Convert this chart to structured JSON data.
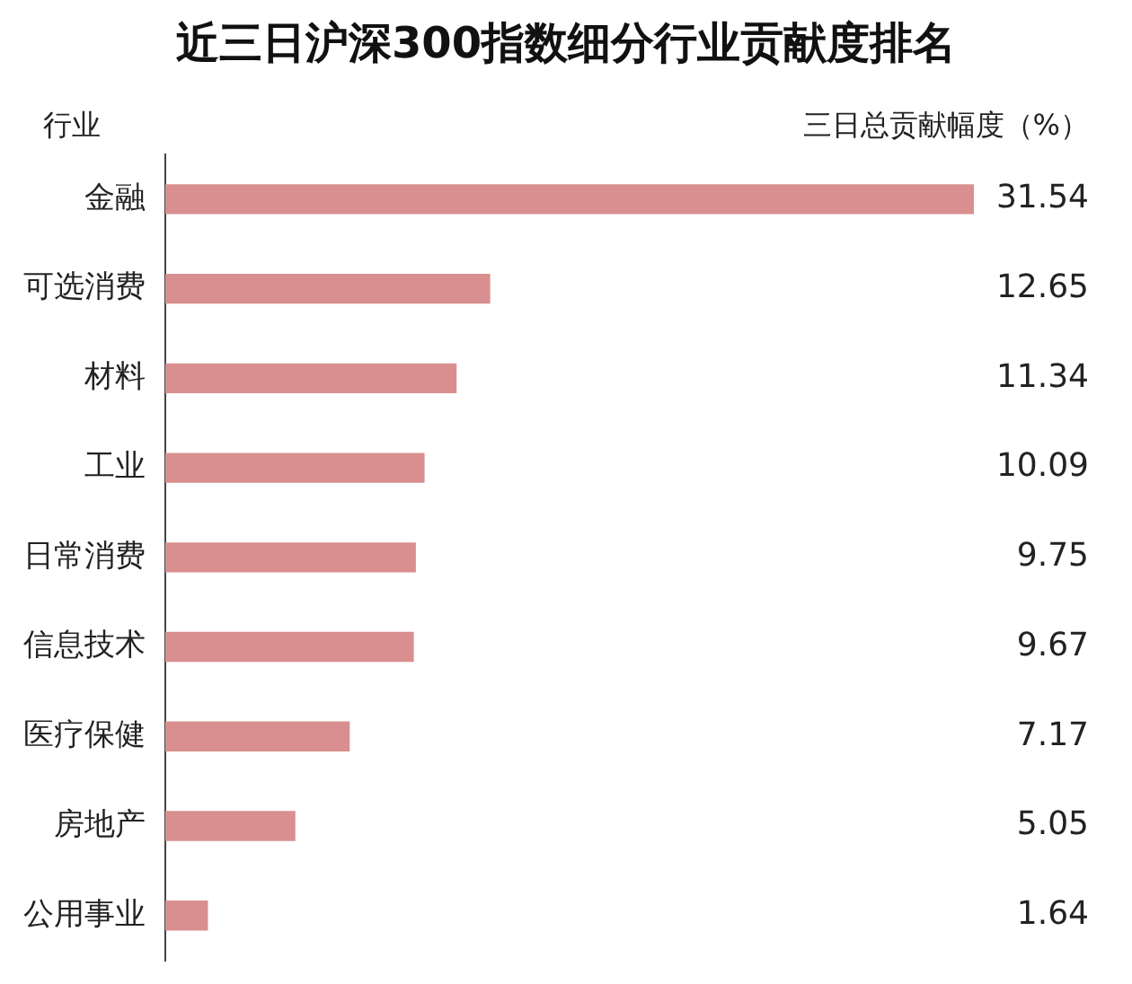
{
  "chart_data": {
    "type": "bar",
    "orientation": "horizontal",
    "title": "近三日沪深300指数细分行业贡献度排名",
    "ylabel": "行业",
    "xlabel": "三日总贡献幅度（%）",
    "categories": [
      "金融",
      "可选消费",
      "材料",
      "工业",
      "日常消费",
      "信息技术",
      "医疗保健",
      "房地产",
      "公用事业"
    ],
    "values": [
      31.54,
      12.65,
      11.34,
      10.09,
      9.75,
      9.67,
      7.17,
      5.05,
      1.64
    ],
    "color": "#d98f8f",
    "data_labels": true,
    "grid": false,
    "legend": false
  }
}
